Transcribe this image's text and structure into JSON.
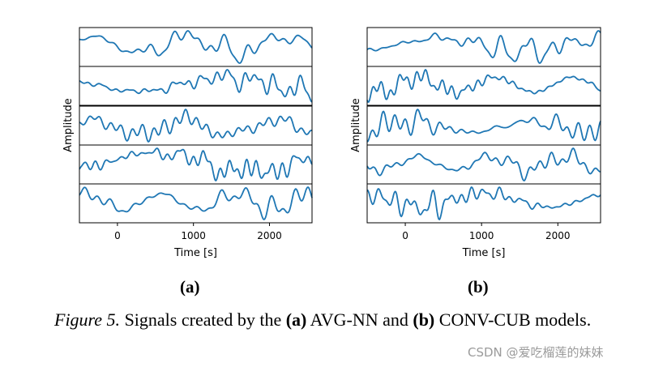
{
  "chart_data": [
    {
      "type": "line",
      "panel_label": "(a)",
      "xlabel": "Time [s]",
      "ylabel": "Amplitude",
      "xlim": [
        -500,
        2560
      ],
      "xticks": [
        0,
        1000,
        2000
      ],
      "xtick_labels": [
        "0",
        "1000",
        "2000"
      ],
      "stacked_subplots": 5,
      "series_color": "#1f77b4",
      "grid": false,
      "legend": "none",
      "seeds": [
        11,
        23,
        37,
        41,
        53
      ]
    },
    {
      "type": "line",
      "panel_label": "(b)",
      "xlabel": "Time [s]",
      "ylabel": "Amplitude",
      "xlim": [
        -500,
        2560
      ],
      "xticks": [
        0,
        1000,
        2000
      ],
      "xtick_labels": [
        "0",
        "1000",
        "2000"
      ],
      "stacked_subplots": 5,
      "series_color": "#1f77b4",
      "grid": false,
      "legend": "none",
      "seeds": [
        67,
        71,
        83,
        97,
        101
      ]
    }
  ],
  "caption": {
    "figure_ref": "Figure 5.",
    "text_1": " Signals created by the ",
    "a_label": "(a)",
    "text_2": " AVG-NN and ",
    "b_label": "(b)",
    "text_3": " CONV-CUB models."
  },
  "watermark": "CSDN @爱吃榴莲的妹妹"
}
